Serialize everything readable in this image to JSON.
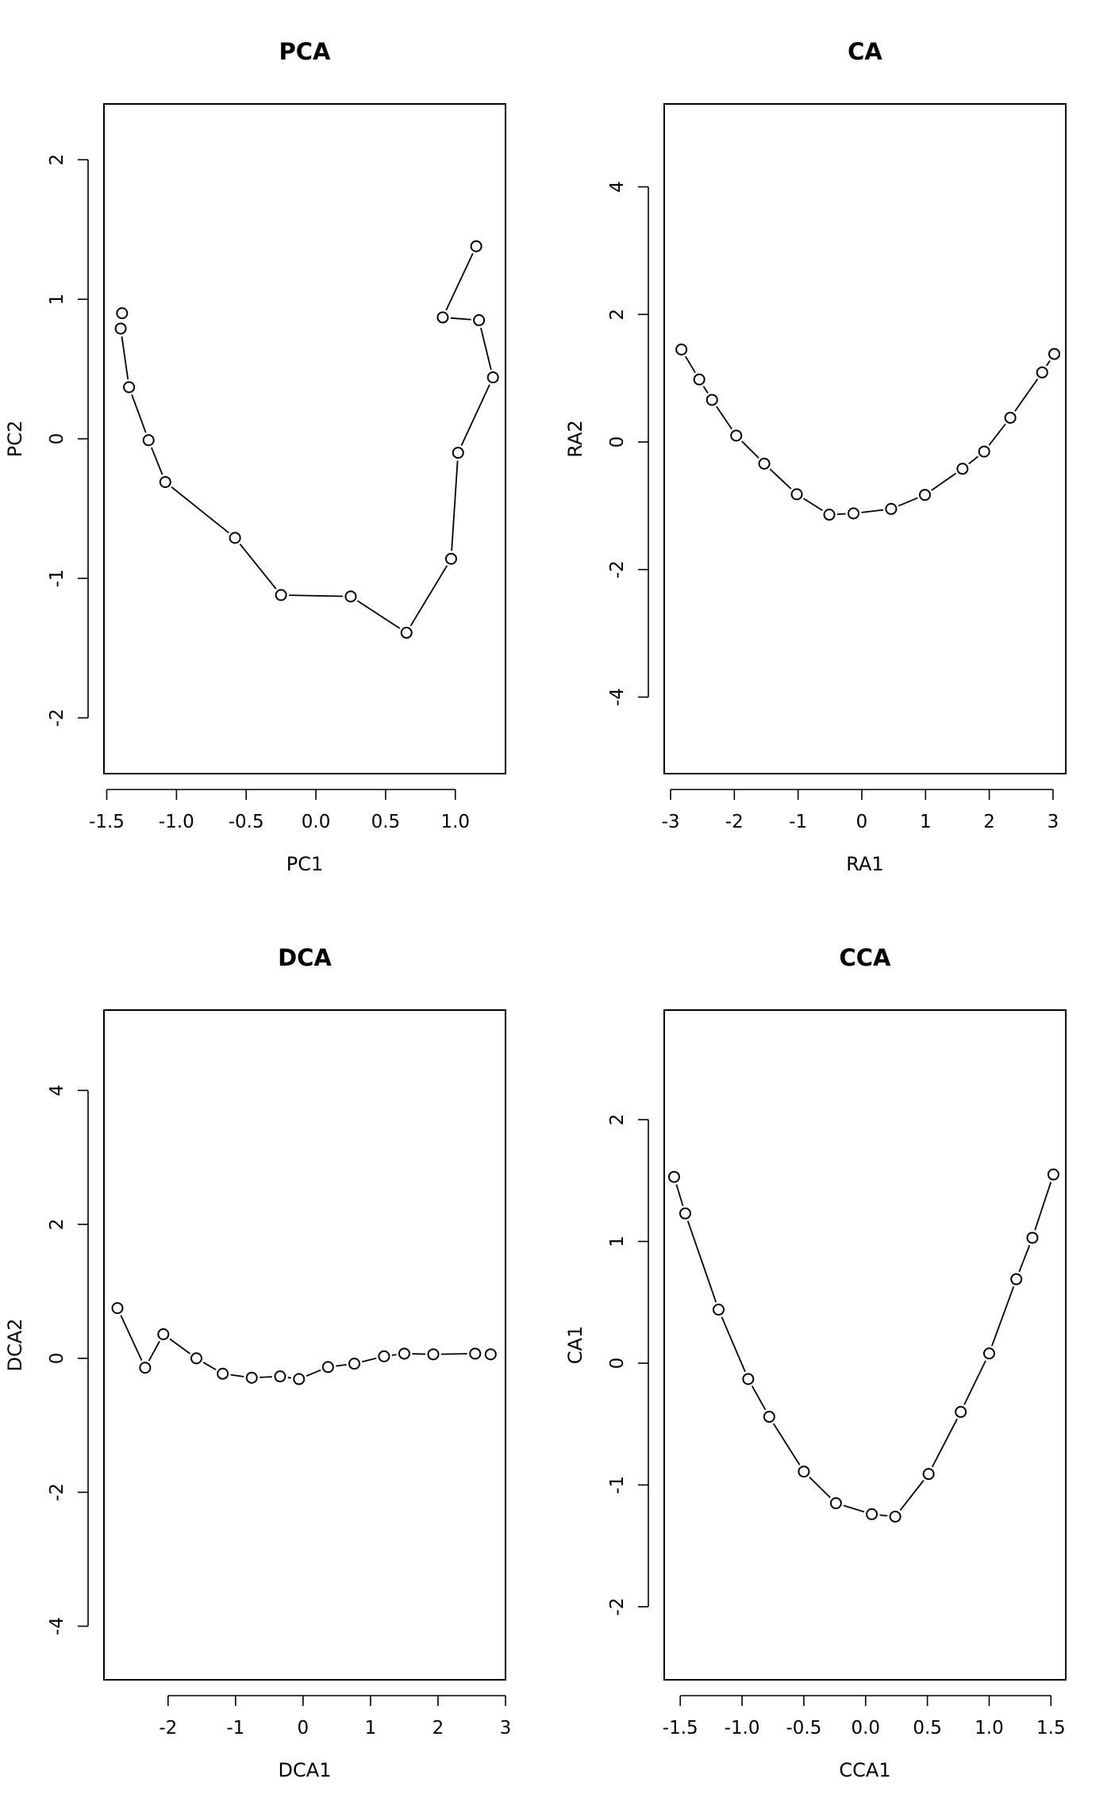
{
  "chart_data": [
    {
      "type": "line",
      "title": "PCA",
      "xlabel": "PC1",
      "ylabel": "PC2",
      "xlim": [
        -1.52,
        1.36
      ],
      "ylim": [
        -2.4,
        2.4
      ],
      "xticks": [
        -1.5,
        -1.0,
        -0.5,
        0.0,
        0.5,
        1.0
      ],
      "xtick_labels": [
        "-1.5",
        "-1.0",
        "-0.5",
        "0.0",
        "0.5",
        "1.0"
      ],
      "yticks": [
        -2,
        -1,
        0,
        1,
        2
      ],
      "ytick_labels": [
        "-2",
        "-1",
        "0",
        "1",
        "2"
      ],
      "series": [
        {
          "x": [
            -1.39,
            -1.4,
            -1.34,
            -1.2,
            -1.08,
            -0.58,
            -0.25,
            0.25,
            0.65,
            0.97,
            1.02,
            1.27,
            1.17,
            0.91,
            1.15
          ],
          "y": [
            0.9,
            0.79,
            0.37,
            -0.01,
            -0.31,
            -0.71,
            -1.12,
            -1.13,
            -1.39,
            -0.86,
            -0.1,
            0.44,
            0.85,
            0.87,
            1.38
          ]
        }
      ]
    },
    {
      "type": "line",
      "title": "CA",
      "xlabel": "RA1",
      "ylabel": "RA2",
      "xlim": [
        -3.1,
        3.2
      ],
      "ylim": [
        -5.2,
        5.3
      ],
      "xticks": [
        -3,
        -2,
        -1,
        0,
        1,
        2,
        3
      ],
      "xtick_labels": [
        "-3",
        "-2",
        "-1",
        "0",
        "1",
        "2",
        "3"
      ],
      "yticks": [
        -4,
        -2,
        0,
        2,
        4
      ],
      "ytick_labels": [
        "-4",
        "-2",
        "0",
        "2",
        "4"
      ],
      "series": [
        {
          "x": [
            -2.83,
            -2.55,
            -2.35,
            -1.97,
            -1.53,
            -1.02,
            -0.51,
            -0.13,
            0.46,
            0.99,
            1.58,
            1.92,
            2.33,
            2.83,
            3.02
          ],
          "y": [
            1.45,
            0.98,
            0.66,
            0.1,
            -0.34,
            -0.82,
            -1.14,
            -1.12,
            -1.05,
            -0.83,
            -0.42,
            -0.15,
            0.38,
            1.09,
            1.38
          ]
        }
      ]
    },
    {
      "type": "line",
      "title": "DCA",
      "xlabel": "DCA1",
      "ylabel": "DCA2",
      "xlim": [
        -2.95,
        3.0
      ],
      "ylim": [
        -4.8,
        5.2
      ],
      "xticks": [
        -2,
        -1,
        0,
        1,
        2,
        3
      ],
      "xtick_labels": [
        "-2",
        "-1",
        "0",
        "1",
        "2",
        "3"
      ],
      "yticks": [
        -4,
        -2,
        0,
        2,
        4
      ],
      "ytick_labels": [
        "-4",
        "-2",
        "0",
        "2",
        "4"
      ],
      "series": [
        {
          "x": [
            -2.75,
            -2.34,
            -2.07,
            -1.58,
            -1.19,
            -0.76,
            -0.34,
            -0.06,
            0.37,
            0.76,
            1.2,
            1.5,
            1.93,
            2.55,
            2.78
          ],
          "y": [
            0.75,
            -0.14,
            0.36,
            0.0,
            -0.23,
            -0.29,
            -0.27,
            -0.31,
            -0.13,
            -0.08,
            0.03,
            0.07,
            0.06,
            0.07,
            0.06
          ]
        }
      ]
    },
    {
      "type": "line",
      "title": "CCA",
      "xlabel": "CCA1",
      "ylabel": "CA1",
      "xlim": [
        -1.63,
        1.62
      ],
      "ylim": [
        -2.6,
        2.9
      ],
      "xticks": [
        -1.5,
        -1.0,
        -0.5,
        0.0,
        0.5,
        1.0,
        1.5
      ],
      "xtick_labels": [
        "-1.5",
        "-1.0",
        "-0.5",
        "0.0",
        "0.5",
        "1.0",
        "1.5"
      ],
      "yticks": [
        -2,
        -1,
        0,
        1,
        2
      ],
      "ytick_labels": [
        "-2",
        "-1",
        "0",
        "1",
        "2"
      ],
      "series": [
        {
          "x": [
            -1.55,
            -1.46,
            -1.19,
            -0.95,
            -0.78,
            -0.5,
            -0.24,
            0.05,
            0.24,
            0.51,
            0.77,
            1.0,
            1.22,
            1.35,
            1.52
          ],
          "y": [
            1.53,
            1.23,
            0.44,
            -0.13,
            -0.44,
            -0.89,
            -1.15,
            -1.24,
            -1.26,
            -0.91,
            -0.4,
            0.08,
            0.69,
            1.03,
            1.55
          ]
        }
      ]
    }
  ]
}
